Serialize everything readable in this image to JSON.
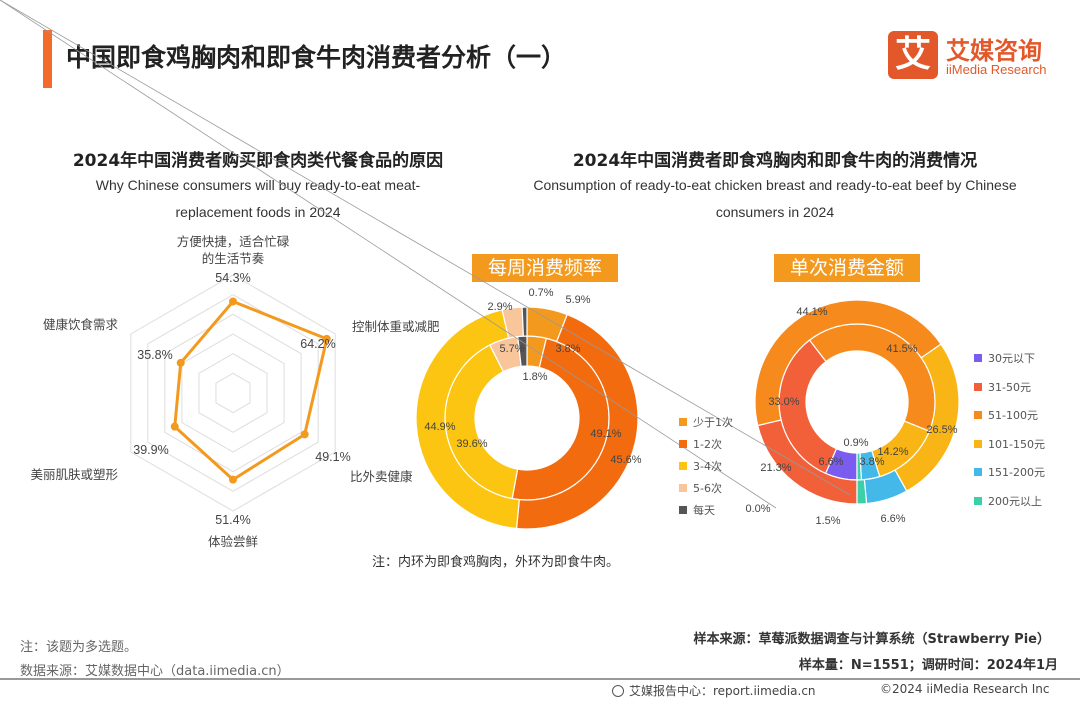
{
  "header": {
    "title": "中国即食鸡胸肉和即食牛肉消费者分析（一）",
    "accent_color": "#f26b2a"
  },
  "logo": {
    "mark": "艾",
    "cn": "艾媒咨询",
    "en": "iiMedia Research",
    "color": "#e2582b"
  },
  "left": {
    "title": "2024年中国消费者购买即食肉类代餐食品的原因",
    "subtitle_line1": "Why Chinese consumers will buy ready-to-eat meat-",
    "subtitle_line2": "replacement foods in 2024"
  },
  "right": {
    "title": "2024年中国消费者即食鸡胸肉和即食牛肉的消费情况",
    "subtitle_line1": "Consumption of ready-to-eat chicken breast and ready-to-eat beef by Chinese",
    "subtitle_line2": "consumers in 2024",
    "note": "注：内环为即食鸡胸肉，外环为即食牛肉。"
  },
  "chart_data": [
    {
      "type": "radar",
      "categories": [
        "方便快捷，适合忙碌的生活节奏",
        "控制体重或减肥",
        "比外卖健康",
        "体验尝鲜",
        "美丽肌肤或塑形",
        "健康饮食需求"
      ],
      "values": [
        54.3,
        64.2,
        49.1,
        51.4,
        39.9,
        35.8
      ],
      "value_labels": [
        "54.3%",
        "64.2%",
        "49.1%",
        "51.4%",
        "39.9%",
        "35.8%"
      ],
      "range": [
        0,
        70
      ],
      "color": "#f39a1e",
      "grid": true,
      "category_lines": [
        [
          "方便快捷，适合忙碌",
          "的生活节奏"
        ],
        [
          "控制体重或减肥"
        ],
        [
          "比外卖健康"
        ],
        [
          "体验尝鲜"
        ],
        [
          "美丽肌肤或塑形"
        ],
        [
          "健康饮食需求"
        ]
      ]
    },
    {
      "type": "donut",
      "title": "每周消费频率",
      "categories": [
        "少于1次",
        "1-2次",
        "3-4次",
        "5-6次",
        "每天"
      ],
      "colors": [
        "#f39a1e",
        "#f26b0f",
        "#fbc511",
        "#f9c59b",
        "#555555"
      ],
      "series": [
        {
          "ring": "inner",
          "values": [
            3.8,
            49.1,
            39.6,
            5.7,
            1.8
          ]
        },
        {
          "ring": "outer",
          "values": [
            5.9,
            45.6,
            44.9,
            2.9,
            0.7
          ]
        }
      ],
      "legend": "right"
    },
    {
      "type": "donut",
      "title": "单次消费金额",
      "categories": [
        "30元以下",
        "31-50元",
        "51-100元",
        "101-150元",
        "151-200元",
        "200元以上"
      ],
      "colors": [
        "#7b5cf0",
        "#f2603a",
        "#f68a1c",
        "#f9b516",
        "#45b8ea",
        "#3ccfa8"
      ],
      "series": [
        {
          "ring": "inner",
          "values": [
            6.6,
            33.0,
            41.5,
            14.2,
            3.8,
            0.9
          ]
        },
        {
          "ring": "outer",
          "values": [
            0.0,
            21.3,
            44.1,
            26.5,
            6.6,
            1.5
          ]
        }
      ],
      "legend": "right"
    }
  ],
  "footer": {
    "note": "注：该题为多选题。",
    "source": "数据来源：艾媒数据中心（data.iimedia.cn）",
    "sample_source": "样本来源：草莓派数据调查与计算系统（Strawberry Pie）",
    "sample_size": "样本量：N=1551；调研时间：2024年1月",
    "report": "艾媒报告中心：report.iimedia.cn",
    "copyright": "©2024  iiMedia Research  Inc"
  }
}
